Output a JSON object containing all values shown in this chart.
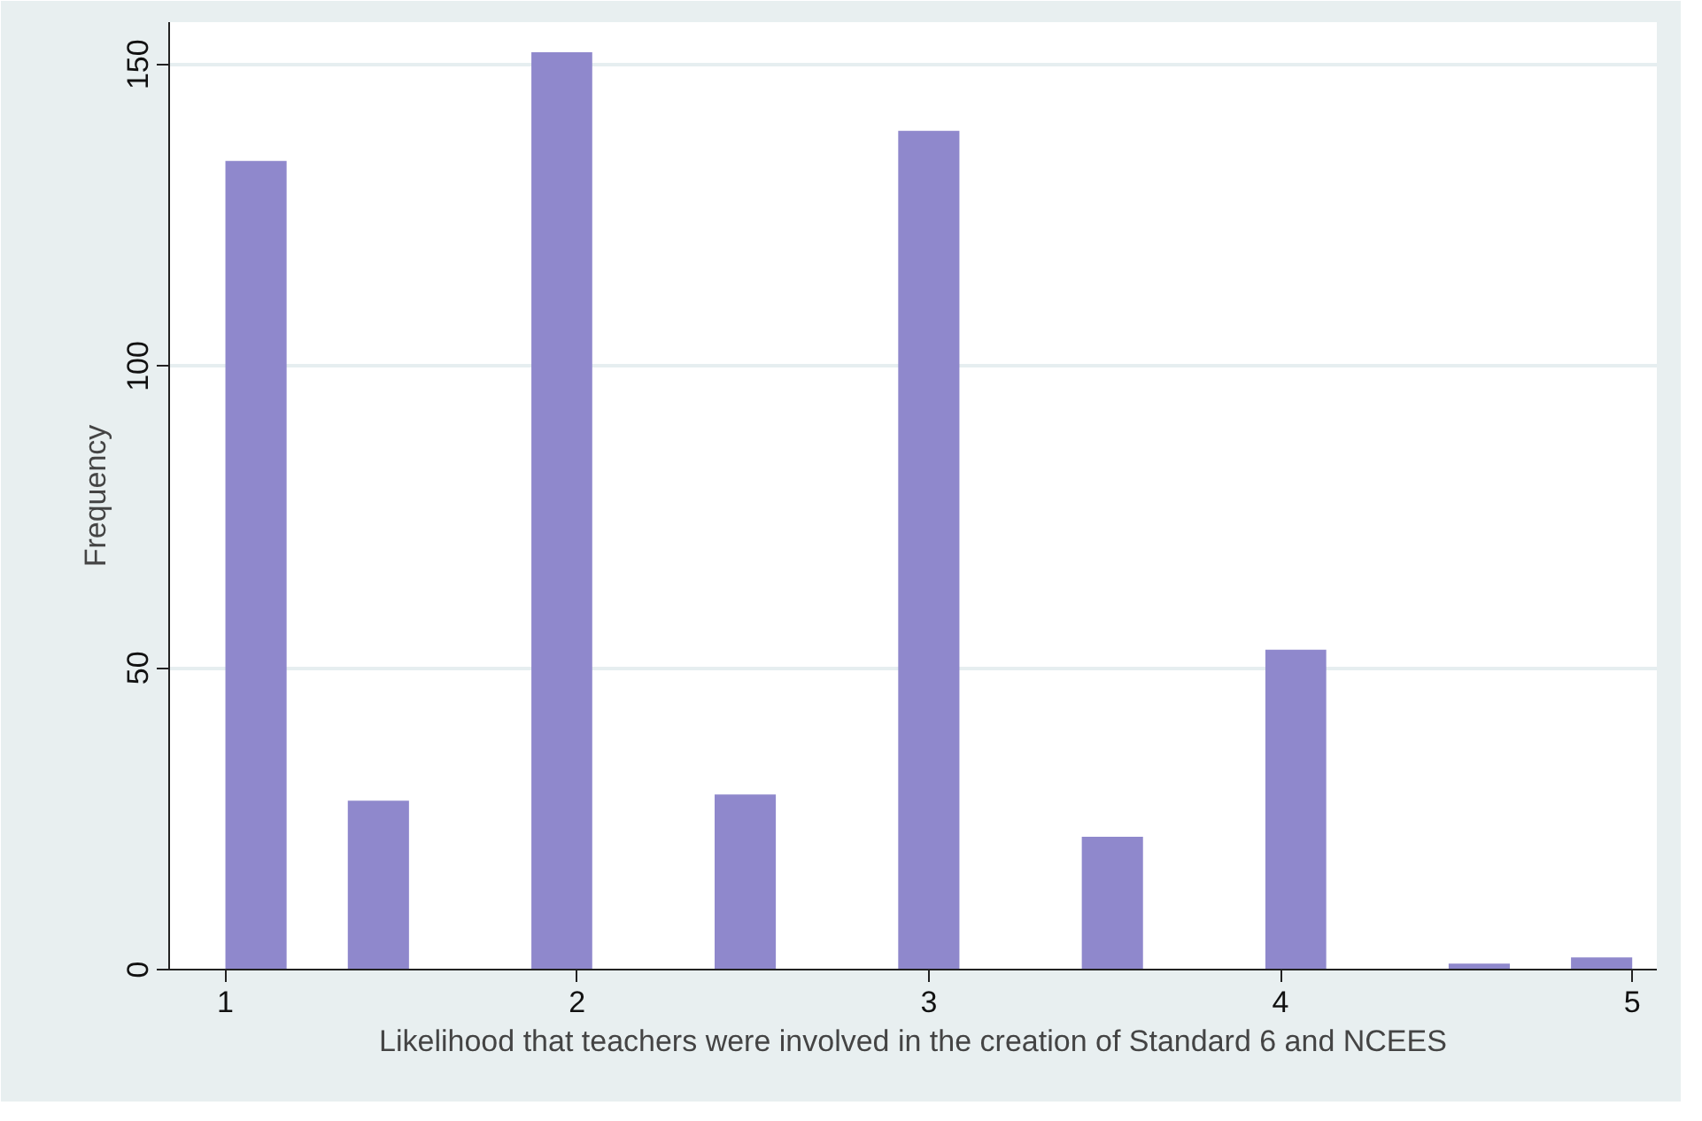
{
  "chart_data": {
    "type": "histogram",
    "xlabel": "Likelihood that teachers were involved in the creation of Standard 6 and NCEES",
    "ylabel": "Frequency",
    "bins": [
      1,
      1.174,
      1.348,
      1.522,
      1.696,
      1.87,
      2.043,
      2.217,
      2.391,
      2.565,
      2.739,
      2.913,
      3.087,
      3.261,
      3.435,
      3.609,
      3.783,
      3.957,
      4.13,
      4.304,
      4.478,
      4.652,
      4.826,
      5
    ],
    "values": [
      134,
      0,
      28,
      0,
      0,
      152,
      0,
      0,
      29,
      0,
      0,
      139,
      0,
      0,
      22,
      0,
      0,
      53,
      0,
      0,
      1,
      0,
      2
    ],
    "color": "#8f88cc",
    "xlim": [
      0.84,
      5.07
    ],
    "ylim": [
      0,
      157
    ],
    "xticks": [
      1,
      2,
      3,
      4,
      5
    ],
    "yticks": [
      0,
      50,
      100,
      150
    ],
    "grid": "y"
  }
}
